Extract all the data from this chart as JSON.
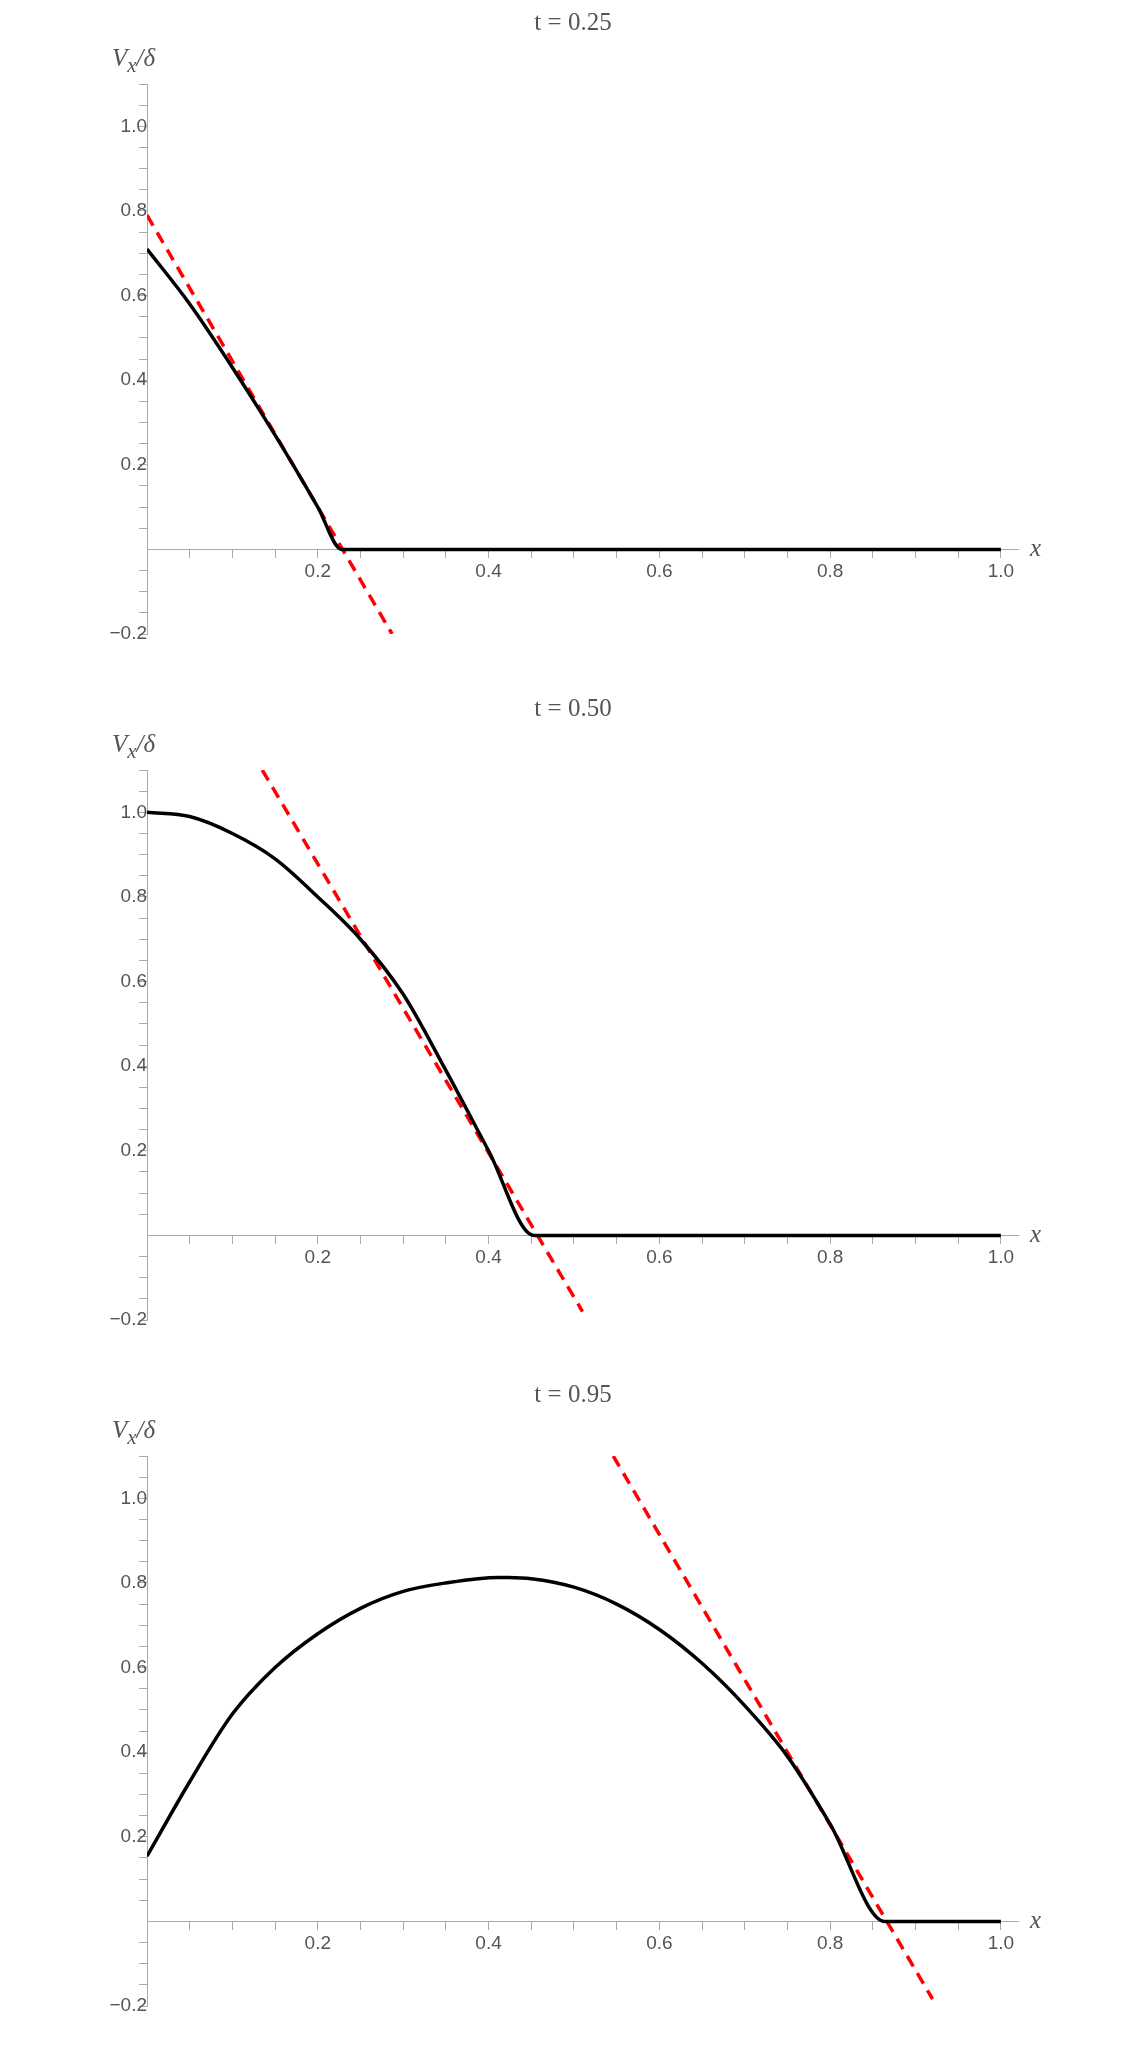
{
  "chart_data": [
    {
      "type": "line",
      "title": "t = 0.25",
      "ylabel": "V$_{x}$/δ",
      "xlabel": "x",
      "xlim": [
        0,
        1.02
      ],
      "ylim": [
        -0.2,
        1.1
      ],
      "xticks": [
        {
          "value": 0.05,
          "label": null
        },
        {
          "value": 0.1,
          "label": null
        },
        {
          "value": 0.15,
          "label": null
        },
        0.2,
        {
          "value": 0.25,
          "label": null
        },
        {
          "value": 0.3,
          "label": null
        },
        {
          "value": 0.35,
          "label": null
        },
        0.4,
        {
          "value": 0.45,
          "label": null
        },
        {
          "value": 0.5,
          "label": null
        },
        {
          "value": 0.55,
          "label": null
        },
        0.6,
        {
          "value": 0.65,
          "label": null
        },
        {
          "value": 0.7,
          "label": null
        },
        {
          "value": 0.75,
          "label": null
        },
        0.8,
        {
          "value": 0.85,
          "label": null
        },
        {
          "value": 0.9,
          "label": null
        },
        {
          "value": 0.95,
          "label": null
        },
        {
          "value": 1,
          "label": "1.0"
        }
      ],
      "yticks": [
        {
          "value": -0.2,
          "label": "−0.2"
        },
        {
          "value": -0.15,
          "label": null
        },
        {
          "value": -0.1,
          "label": null
        },
        {
          "value": -0.05,
          "label": null
        },
        {
          "value": 0.05,
          "label": null
        },
        {
          "value": 0.1,
          "label": null
        },
        {
          "value": 0.15,
          "label": null
        },
        0.2,
        {
          "value": 0.25,
          "label": null
        },
        {
          "value": 0.3,
          "label": null
        },
        {
          "value": 0.35,
          "label": null
        },
        0.4,
        {
          "value": 0.45,
          "label": null
        },
        {
          "value": 0.5,
          "label": null
        },
        {
          "value": 0.55,
          "label": null
        },
        0.6,
        {
          "value": 0.65,
          "label": null
        },
        {
          "value": 0.7,
          "label": null
        },
        {
          "value": 0.75,
          "label": null
        },
        0.8,
        {
          "value": 0.85,
          "label": null
        },
        {
          "value": 0.9,
          "label": null
        },
        {
          "value": 0.95,
          "label": null
        },
        {
          "value": 1,
          "label": "1.0"
        },
        {
          "value": 1.05,
          "label": null
        },
        {
          "value": 1.1,
          "label": null
        }
      ],
      "grid": false,
      "legend": false,
      "marker": "none",
      "series": [
        {
          "color": "#000000",
          "line_style": "solid",
          "x": [
            0,
            0.05,
            0.1,
            0.15,
            0.2,
            0.228,
            1
          ],
          "values": [
            0.71,
            0.58,
            0.43,
            0.27,
            0.1,
            0,
            0
          ]
        },
        {
          "color": "#ff0000",
          "line_style": "dashed",
          "x": [
            0,
            0.287
          ],
          "values": [
            0.79,
            -0.2
          ]
        }
      ]
    },
    {
      "type": "line",
      "title": "t = 0.50",
      "ylabel": "V$_{x}$/δ",
      "xlabel": "x",
      "xlim": [
        0,
        1.02
      ],
      "ylim": [
        -0.2,
        1.1
      ],
      "xticks": [
        {
          "value": 0.05,
          "label": null
        },
        {
          "value": 0.1,
          "label": null
        },
        {
          "value": 0.15,
          "label": null
        },
        0.2,
        {
          "value": 0.25,
          "label": null
        },
        {
          "value": 0.3,
          "label": null
        },
        {
          "value": 0.35,
          "label": null
        },
        0.4,
        {
          "value": 0.45,
          "label": null
        },
        {
          "value": 0.5,
          "label": null
        },
        {
          "value": 0.55,
          "label": null
        },
        0.6,
        {
          "value": 0.65,
          "label": null
        },
        {
          "value": 0.7,
          "label": null
        },
        {
          "value": 0.75,
          "label": null
        },
        0.8,
        {
          "value": 0.85,
          "label": null
        },
        {
          "value": 0.9,
          "label": null
        },
        {
          "value": 0.95,
          "label": null
        },
        {
          "value": 1,
          "label": "1.0"
        }
      ],
      "yticks": [
        {
          "value": -0.2,
          "label": "−0.2"
        },
        {
          "value": -0.15,
          "label": null
        },
        {
          "value": -0.1,
          "label": null
        },
        {
          "value": -0.05,
          "label": null
        },
        {
          "value": 0.05,
          "label": null
        },
        {
          "value": 0.1,
          "label": null
        },
        {
          "value": 0.15,
          "label": null
        },
        0.2,
        {
          "value": 0.25,
          "label": null
        },
        {
          "value": 0.3,
          "label": null
        },
        {
          "value": 0.35,
          "label": null
        },
        0.4,
        {
          "value": 0.45,
          "label": null
        },
        {
          "value": 0.5,
          "label": null
        },
        {
          "value": 0.55,
          "label": null
        },
        0.6,
        {
          "value": 0.65,
          "label": null
        },
        {
          "value": 0.7,
          "label": null
        },
        {
          "value": 0.75,
          "label": null
        },
        0.8,
        {
          "value": 0.85,
          "label": null
        },
        {
          "value": 0.9,
          "label": null
        },
        {
          "value": 0.95,
          "label": null
        },
        {
          "value": 1,
          "label": "1.0"
        },
        {
          "value": 1.05,
          "label": null
        },
        {
          "value": 1.1,
          "label": null
        }
      ],
      "grid": false,
      "legend": false,
      "marker": "none",
      "series": [
        {
          "color": "#000000",
          "line_style": "solid",
          "x": [
            0,
            0.05,
            0.1,
            0.15,
            0.2,
            0.25,
            0.3,
            0.35,
            0.4,
            0.453,
            1
          ],
          "values": [
            1.0,
            0.99,
            0.95,
            0.89,
            0.8,
            0.7,
            0.57,
            0.39,
            0.2,
            0,
            0
          ]
        },
        {
          "color": "#ff0000",
          "line_style": "dashed",
          "x": [
            0.135,
            0.51
          ],
          "values": [
            1.1,
            -0.18
          ]
        }
      ]
    },
    {
      "type": "line",
      "title": "t = 0.95",
      "ylabel": "V$_{x}$/δ",
      "xlabel": "x",
      "xlim": [
        0,
        1.02
      ],
      "ylim": [
        -0.2,
        1.1
      ],
      "xticks": [
        {
          "value": 0.05,
          "label": null
        },
        {
          "value": 0.1,
          "label": null
        },
        {
          "value": 0.15,
          "label": null
        },
        0.2,
        {
          "value": 0.25,
          "label": null
        },
        {
          "value": 0.3,
          "label": null
        },
        {
          "value": 0.35,
          "label": null
        },
        0.4,
        {
          "value": 0.45,
          "label": null
        },
        {
          "value": 0.5,
          "label": null
        },
        {
          "value": 0.55,
          "label": null
        },
        0.6,
        {
          "value": 0.65,
          "label": null
        },
        {
          "value": 0.7,
          "label": null
        },
        {
          "value": 0.75,
          "label": null
        },
        0.8,
        {
          "value": 0.85,
          "label": null
        },
        {
          "value": 0.9,
          "label": null
        },
        {
          "value": 0.95,
          "label": null
        },
        {
          "value": 1,
          "label": "1.0"
        }
      ],
      "yticks": [
        {
          "value": -0.2,
          "label": "−0.2"
        },
        {
          "value": -0.15,
          "label": null
        },
        {
          "value": -0.1,
          "label": null
        },
        {
          "value": -0.05,
          "label": null
        },
        {
          "value": 0.05,
          "label": null
        },
        {
          "value": 0.1,
          "label": null
        },
        {
          "value": 0.15,
          "label": null
        },
        0.2,
        {
          "value": 0.25,
          "label": null
        },
        {
          "value": 0.3,
          "label": null
        },
        {
          "value": 0.35,
          "label": null
        },
        0.4,
        {
          "value": 0.45,
          "label": null
        },
        {
          "value": 0.5,
          "label": null
        },
        {
          "value": 0.55,
          "label": null
        },
        0.6,
        {
          "value": 0.65,
          "label": null
        },
        {
          "value": 0.7,
          "label": null
        },
        {
          "value": 0.75,
          "label": null
        },
        0.8,
        {
          "value": 0.85,
          "label": null
        },
        {
          "value": 0.9,
          "label": null
        },
        {
          "value": 0.95,
          "label": null
        },
        {
          "value": 1,
          "label": "1.0"
        },
        {
          "value": 1.05,
          "label": null
        },
        {
          "value": 1.1,
          "label": null
        }
      ],
      "grid": false,
      "legend": false,
      "marker": "none",
      "series": [
        {
          "color": "#000000",
          "line_style": "solid",
          "x": [
            0,
            0.05,
            0.1,
            0.15,
            0.2,
            0.25,
            0.3,
            0.35,
            0.412,
            0.45,
            0.5,
            0.55,
            0.6,
            0.65,
            0.7,
            0.75,
            0.8,
            0.864,
            1
          ],
          "values": [
            0.154,
            0.33,
            0.49,
            0.6,
            0.68,
            0.74,
            0.78,
            0.8,
            0.813,
            0.81,
            0.79,
            0.75,
            0.69,
            0.61,
            0.51,
            0.39,
            0.23,
            0,
            0
          ]
        },
        {
          "color": "#ff0000",
          "line_style": "dashed",
          "x": [
            0.546,
            0.92
          ],
          "values": [
            1.1,
            -0.184
          ]
        }
      ]
    }
  ]
}
